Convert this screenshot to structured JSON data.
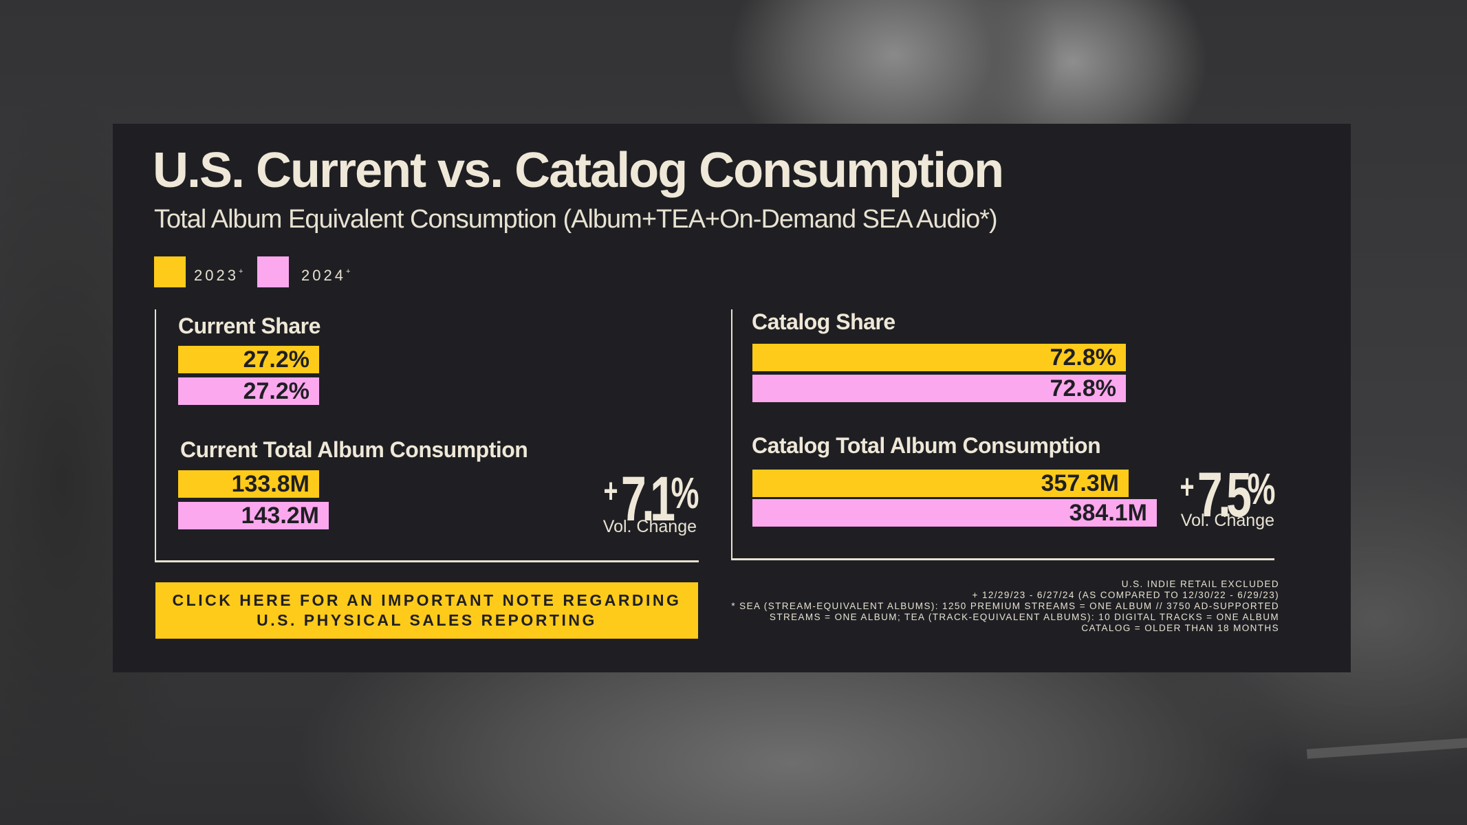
{
  "page": {
    "title": "U.S. Current vs. Catalog Consumption",
    "subtitle": "Total Album Equivalent Consumption (Album+TEA+On-Demand SEA Audio*)",
    "cta_line1": "CLICK HERE FOR AN IMPORTANT NOTE REGARDING",
    "cta_line2": "U.S. PHYSICAL SALES REPORTING",
    "footnotes": [
      "U.S. INDIE RETAIL EXCLUDED",
      "+ 12/29/23 - 6/27/24 (AS COMPARED TO 12/30/22 - 6/29/23)",
      "* SEA (STREAM-EQUIVALENT ALBUMS): 1250 PREMIUM STREAMS = ONE ALBUM // 3750 AD-SUPPORTED",
      "STREAMS = ONE ALBUM; TEA (TRACK-EQUIVALENT ALBUMS): 10 DIGITAL TRACKS = ONE ALBUM",
      "CATALOG = OLDER THAN 18 MONTHS"
    ]
  },
  "colors": {
    "2023": "#ffcb1a",
    "2024": "#fca8ef",
    "panel": "#1f1f23",
    "text": "#efe8d8"
  },
  "legend": [
    {
      "label": "2023",
      "marker": "+",
      "color": "#ffcb1a"
    },
    {
      "label": "2024",
      "marker": "+",
      "color": "#fca8ef"
    }
  ],
  "chart_data": [
    {
      "type": "bar",
      "title": "Current Share",
      "unit": "%",
      "series": [
        {
          "name": "2023",
          "value": 27.2,
          "label": "27.2%"
        },
        {
          "name": "2024",
          "value": 27.2,
          "label": "27.2%"
        }
      ]
    },
    {
      "type": "bar",
      "title": "Current Total Album Consumption",
      "unit": "M",
      "series": [
        {
          "name": "2023",
          "value": 133.8,
          "label": "133.8M"
        },
        {
          "name": "2024",
          "value": 143.2,
          "label": "143.2M"
        }
      ],
      "change": {
        "sign": "+",
        "number": "7.1",
        "unit": "%",
        "label": "Vol. Change"
      }
    },
    {
      "type": "bar",
      "title": "Catalog Share",
      "unit": "%",
      "series": [
        {
          "name": "2023",
          "value": 72.8,
          "label": "72.8%"
        },
        {
          "name": "2024",
          "value": 72.8,
          "label": "72.8%"
        }
      ]
    },
    {
      "type": "bar",
      "title": "Catalog Total Album Consumption",
      "unit": "M",
      "series": [
        {
          "name": "2023",
          "value": 357.3,
          "label": "357.3M"
        },
        {
          "name": "2024",
          "value": 384.1,
          "label": "384.1M"
        }
      ],
      "change": {
        "sign": "+",
        "number": "7.5",
        "unit": "%",
        "label": "Vol. Change"
      }
    }
  ]
}
